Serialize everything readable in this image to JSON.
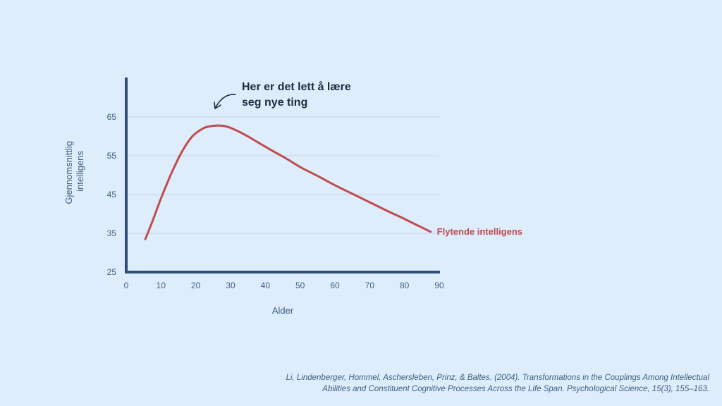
{
  "chart_data": {
    "type": "line",
    "title": "",
    "xlabel": "Alder",
    "ylabel_lines": [
      "Gjennomsnittlig",
      "intelligens"
    ],
    "xlim": [
      0,
      90
    ],
    "ylim": [
      25,
      65
    ],
    "x_ticks": [
      0,
      10,
      20,
      30,
      40,
      50,
      60,
      70,
      80,
      90
    ],
    "y_ticks": [
      25,
      35,
      45,
      55,
      65
    ],
    "grid": "horizontal",
    "series": [
      {
        "name": "Flytende intelligens",
        "color": "#c14b4f",
        "x": [
          5.5,
          7.5,
          10,
          13,
          16,
          19,
          22,
          24,
          26,
          28,
          30,
          34,
          38,
          42,
          46,
          50,
          55,
          60,
          65,
          70,
          75,
          80,
          87.5
        ],
        "y": [
          33.5,
          38,
          44,
          50.5,
          56,
          60,
          62,
          62.6,
          62.8,
          62.7,
          62.2,
          60.5,
          58.4,
          56.3,
          54.3,
          52.1,
          49.8,
          47.4,
          45.2,
          43,
          40.8,
          38.7,
          35.4
        ]
      }
    ],
    "annotations": [
      {
        "lines": [
          "Her er det lett å lære",
          "seg nye ting"
        ],
        "points_to": {
          "x": 25,
          "y": 63
        }
      }
    ],
    "arrow_icon": "curved-arrow-icon"
  },
  "citation": {
    "line1": "Li, Lindenberger, Hommel, Aschersleben, Prinz, & Baltes. (2004). Transformations in the Couplings Among Intellectual",
    "line2": "Abilities and Constituent Cognitive Processes Across the Life Span. Psychological Science, 15(3), 155–163."
  }
}
